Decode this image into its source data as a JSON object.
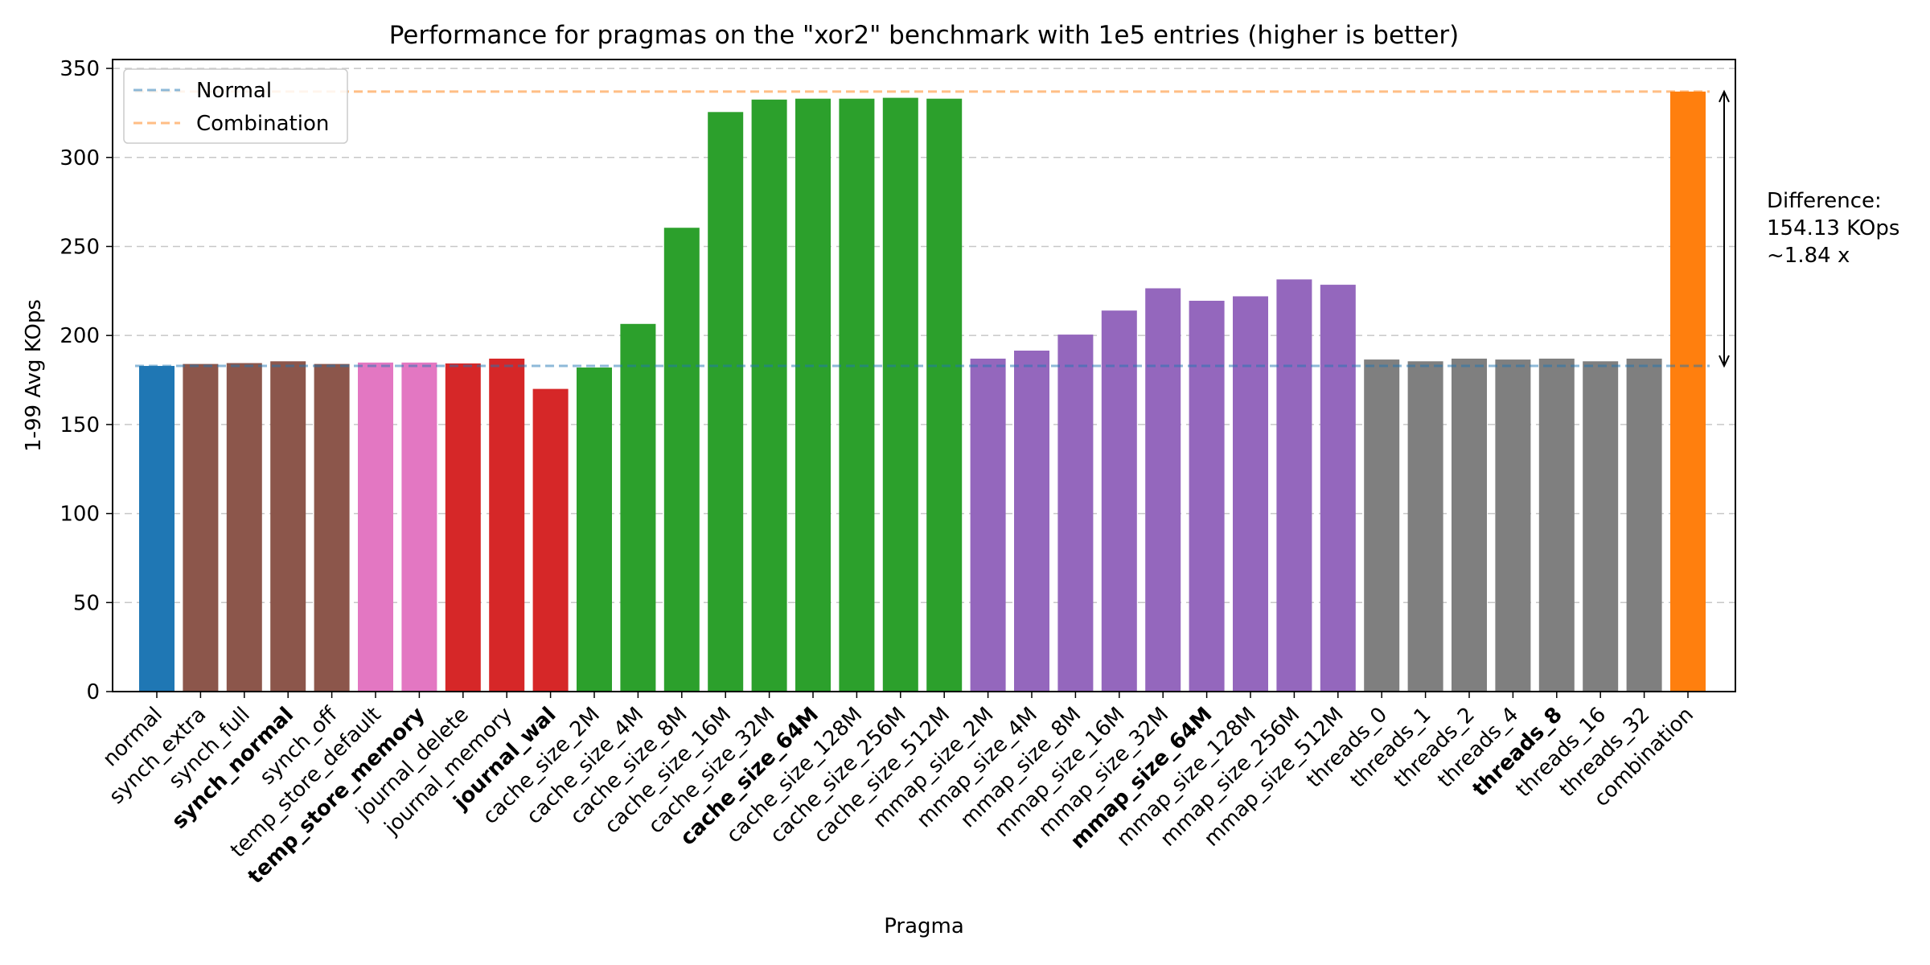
{
  "chart_data": {
    "type": "bar",
    "title": "Performance for pragmas on the \"xor2\" benchmark with 1e5 entries (higher is better)",
    "xlabel": "Pragma",
    "ylabel": "1-99 Avg KOps",
    "ylim": [
      0,
      355
    ],
    "yticks": [
      0,
      50,
      100,
      150,
      200,
      250,
      300,
      350
    ],
    "grid": "horizontal dashed",
    "legend_position": "top-left",
    "categories": [
      "normal",
      "synch_extra",
      "synch_full",
      "synch_normal",
      "synch_off",
      "temp_store_default",
      "temp_store_memory",
      "journal_delete",
      "journal_memory",
      "journal_wal",
      "cache_size_2M",
      "cache_size_4M",
      "cache_size_8M",
      "cache_size_16M",
      "cache_size_32M",
      "cache_size_64M",
      "cache_size_128M",
      "cache_size_256M",
      "cache_size_512M",
      "mmap_size_2M",
      "mmap_size_4M",
      "mmap_size_8M",
      "mmap_size_16M",
      "mmap_size_32M",
      "mmap_size_64M",
      "mmap_size_128M",
      "mmap_size_256M",
      "mmap_size_512M",
      "threads_0",
      "threads_1",
      "threads_2",
      "threads_4",
      "threads_8",
      "threads_16",
      "threads_32",
      "combination"
    ],
    "values": [
      182.9,
      184.0,
      184.5,
      185.5,
      184.0,
      184.8,
      184.8,
      184.3,
      187.0,
      170.0,
      182.0,
      206.5,
      260.5,
      325.5,
      332.5,
      333.0,
      333.0,
      333.5,
      333.0,
      187.0,
      191.5,
      200.5,
      214.0,
      226.5,
      219.5,
      222.0,
      231.5,
      228.5,
      186.5,
      185.5,
      187.0,
      186.5,
      187.0,
      185.5,
      187.0,
      337.0
    ],
    "bold_categories": [
      "synch_normal",
      "temp_store_memory",
      "journal_wal",
      "cache_size_64M",
      "mmap_size_64M",
      "threads_8"
    ],
    "group_colors": [
      "#1f77b4",
      "#8c564b",
      "#8c564b",
      "#8c564b",
      "#8c564b",
      "#e377c2",
      "#e377c2",
      "#d62728",
      "#d62728",
      "#d62728",
      "#2ca02c",
      "#2ca02c",
      "#2ca02c",
      "#2ca02c",
      "#2ca02c",
      "#2ca02c",
      "#2ca02c",
      "#2ca02c",
      "#2ca02c",
      "#9467bd",
      "#9467bd",
      "#9467bd",
      "#9467bd",
      "#9467bd",
      "#9467bd",
      "#9467bd",
      "#9467bd",
      "#9467bd",
      "#7f7f7f",
      "#7f7f7f",
      "#7f7f7f",
      "#7f7f7f",
      "#7f7f7f",
      "#7f7f7f",
      "#7f7f7f",
      "#ff7f0e"
    ],
    "reference_lines": [
      {
        "name": "Normal",
        "value": 182.9,
        "color": "#1f77b4",
        "style": "dashed"
      },
      {
        "name": "Combination",
        "value": 337.0,
        "color": "#ff7f0e",
        "style": "dashed"
      }
    ],
    "annotation": {
      "lines": [
        "Difference:",
        "154.13 KOps",
        "~1.84 x"
      ],
      "from_value": 182.9,
      "to_value": 337.0
    }
  }
}
